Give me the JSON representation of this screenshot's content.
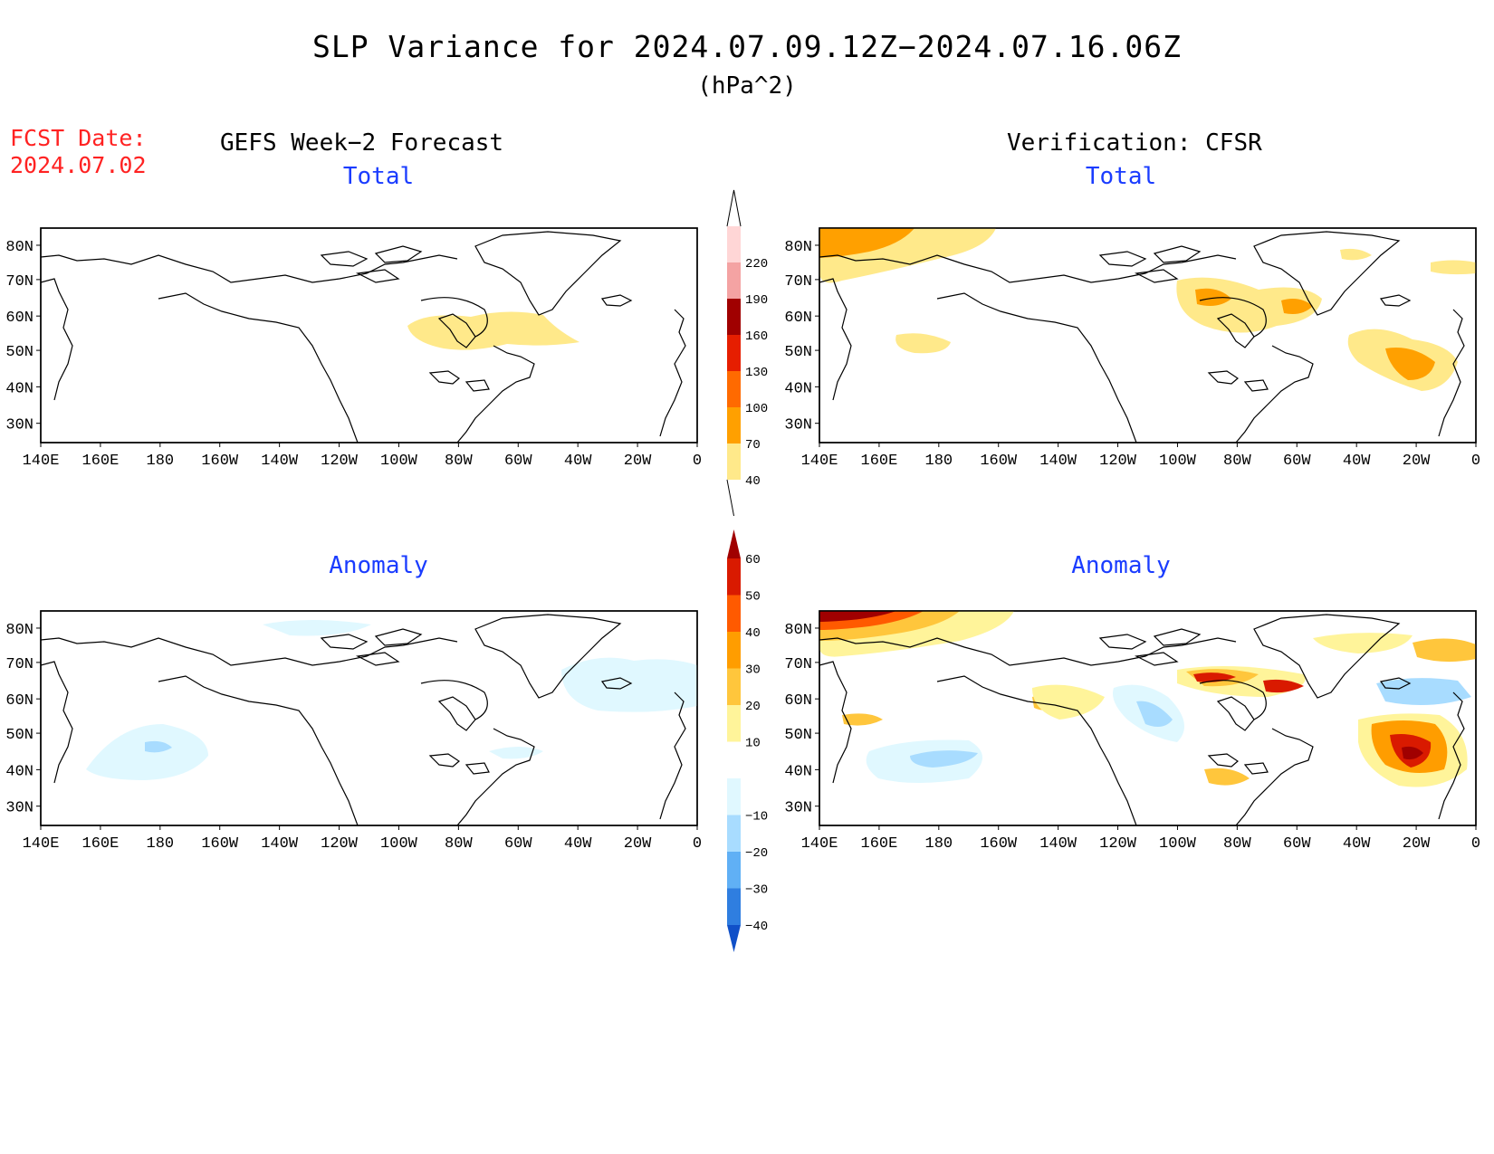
{
  "header": {
    "title": "SLP Variance for 2024.07.09.12Z−2024.07.16.06Z",
    "units": "(hPa^2)",
    "fcst_label": "FCST Date:",
    "fcst_date": "2024.07.02",
    "left_column": "GEFS Week−2 Forecast",
    "right_column": "Verification: CFSR"
  },
  "panels": {
    "top_left": "Total",
    "top_right": "Total",
    "bottom_left": "Anomaly",
    "bottom_right": "Anomaly"
  },
  "axes": {
    "lon_labels": [
      "140E",
      "160E",
      "180",
      "160W",
      "140W",
      "120W",
      "100W",
      "80W",
      "60W",
      "40W",
      "20W",
      "0"
    ],
    "lat_labels": [
      "80N",
      "70N",
      "60N",
      "50N",
      "40N",
      "30N"
    ]
  },
  "colorbars": {
    "total": {
      "labels": [
        "40",
        "70",
        "100",
        "130",
        "160",
        "190",
        "220"
      ],
      "colors": [
        "#ffe98a",
        "#ffa000",
        "#ff6a00",
        "#e61e00",
        "#a00000",
        "#f4a3a3",
        "#ffd6d6"
      ]
    },
    "anomaly": {
      "labels": [
        "60",
        "50",
        "40",
        "30",
        "20",
        "10",
        "−10",
        "−20",
        "−30",
        "−40"
      ],
      "colors": [
        "#a00000",
        "#d91a00",
        "#ff5a00",
        "#ff9d00",
        "#ffc63c",
        "#fff49a",
        "#ffffff",
        "#e0f8ff",
        "#a8dcff",
        "#60b0f5",
        "#2f7ee0",
        "#1050c8"
      ]
    }
  },
  "colors": {
    "panel_title": "#1a3cff",
    "fcst_date": "#ff2222",
    "coast": "#000000"
  }
}
